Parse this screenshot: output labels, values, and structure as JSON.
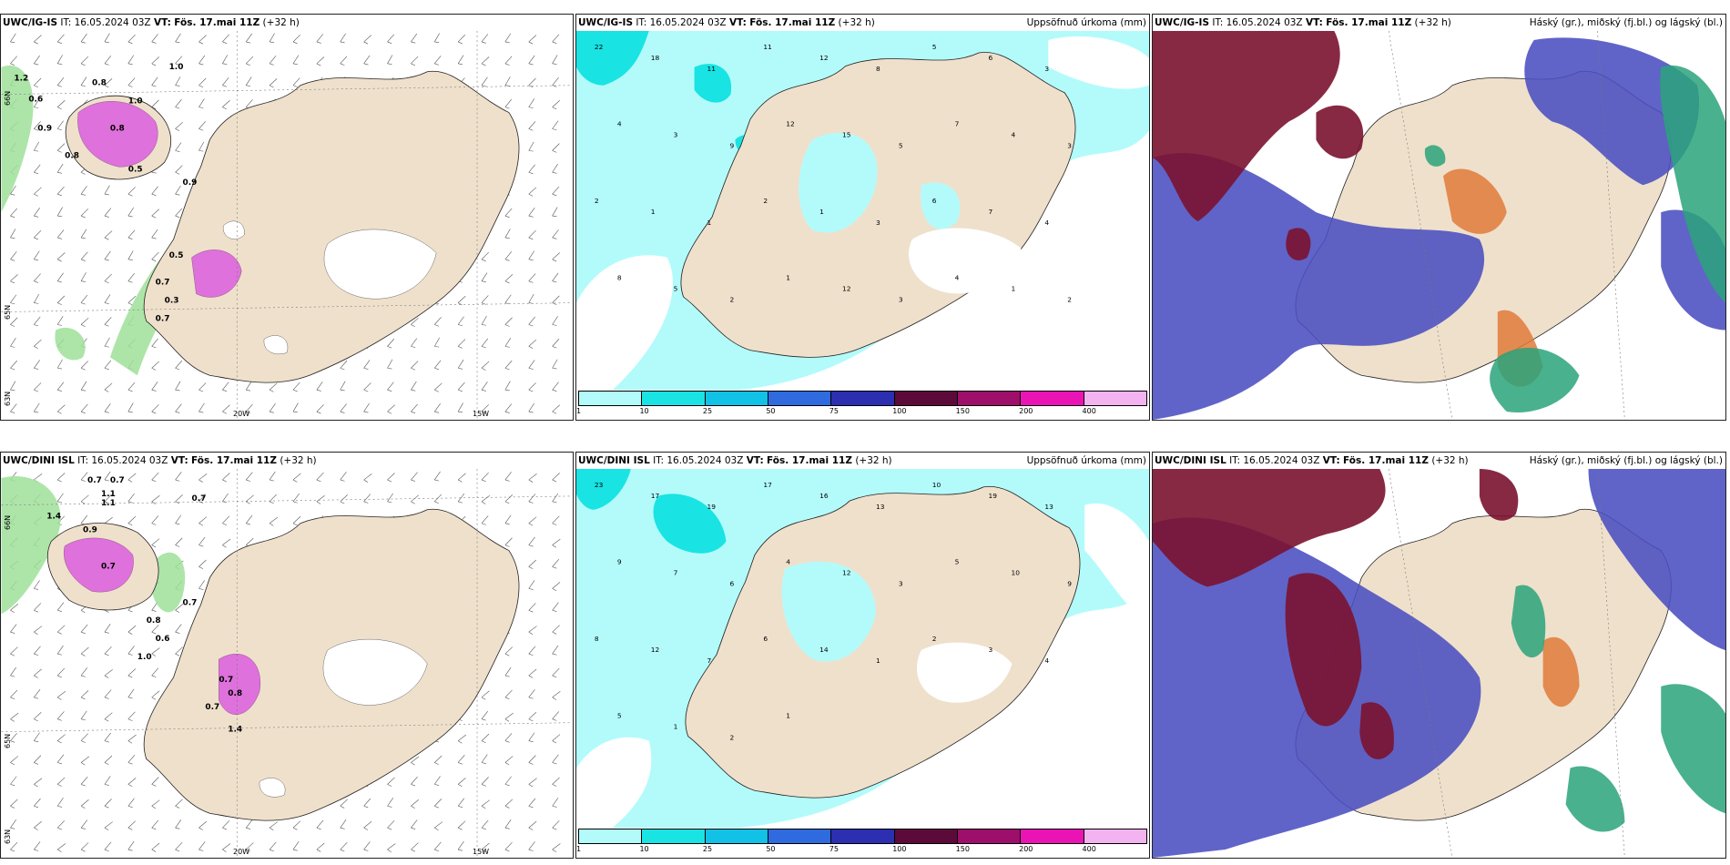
{
  "rows": [
    {
      "model": "UWC/IG-IS",
      "it_label": "IT:",
      "it_value": "16.05.2024 03Z",
      "vt_label": "VT:",
      "vt_value": "Fös. 17.mai 11Z",
      "lead": "(+32 h)",
      "wind_labels": [
        "1.2",
        "0.9",
        "0.6",
        "0.8",
        "0.8",
        "1.0",
        "0.9",
        "0.5",
        "0.5",
        "0.7",
        "0.3",
        "0.7",
        "1.0",
        "0.8"
      ],
      "precip_labels": [
        "22",
        "18",
        "11",
        "11",
        "12",
        "8",
        "5",
        "6",
        "3",
        "4",
        "3",
        "9",
        "12",
        "15",
        "5",
        "7",
        "4",
        "3",
        "2",
        "1",
        "1",
        "2",
        "1",
        "3",
        "6",
        "7",
        "4",
        "8",
        "5",
        "2",
        "1",
        "12",
        "3",
        "4",
        "1",
        "2"
      ],
      "lon_labels": [
        "20W",
        "15W"
      ],
      "lat_labels": [
        "66N",
        "65N",
        "63N"
      ]
    },
    {
      "model": "UWC/DINI ISL",
      "it_label": "IT:",
      "it_value": "16.05.2024 03Z",
      "vt_label": "VT:",
      "vt_value": "Fös. 17.mai 11Z",
      "lead": "(+32 h)",
      "wind_labels": [
        "1.4",
        "0.7",
        "0.7",
        "1.1",
        "1.1",
        "0.7",
        "0.9",
        "0.7",
        "0.7",
        "0.6",
        "0.8",
        "1.0",
        "0.8",
        "0.7",
        "0.7",
        "1.4"
      ],
      "precip_labels": [
        "23",
        "17",
        "19",
        "17",
        "16",
        "13",
        "10",
        "19",
        "13",
        "9",
        "7",
        "6",
        "4",
        "12",
        "3",
        "5",
        "10",
        "9",
        "8",
        "12",
        "7",
        "6",
        "14",
        "1",
        "2",
        "3",
        "4",
        "5",
        "1",
        "2",
        "1"
      ],
      "lon_labels": [
        "20W",
        "15W"
      ],
      "lat_labels": [
        "66N",
        "65N",
        "63N"
      ]
    }
  ],
  "precip_title": "Uppsöfnuð úrkoma (mm)",
  "cloud_title": "Háský (gr.), miðský (fj.bl.) og lágský (bl.)",
  "legend": {
    "ticks": [
      "1",
      "10",
      "25",
      "50",
      "75",
      "100",
      "150",
      "200",
      "400"
    ],
    "colors": [
      "#b3fbfb",
      "#19e3e3",
      "#12c1e6",
      "#2f6bde",
      "#2b2fb0",
      "#5c0a3a",
      "#9d0f6b",
      "#ea14b5",
      "#f2b3f0"
    ]
  },
  "colors": {
    "land": "#efe0cc",
    "precip_light": "#b3fbfb",
    "precip_cyan": "#19e3e3",
    "wind_green": "#8fdc8a",
    "wind_dark": "#1f8a3a",
    "ice_magenta": "#d94ce0",
    "cloud_high": "#7b1230",
    "cloud_mid": "#4a4fc0",
    "cloud_low": "#2aa37a",
    "cloud_orange": "#e07a3a"
  }
}
